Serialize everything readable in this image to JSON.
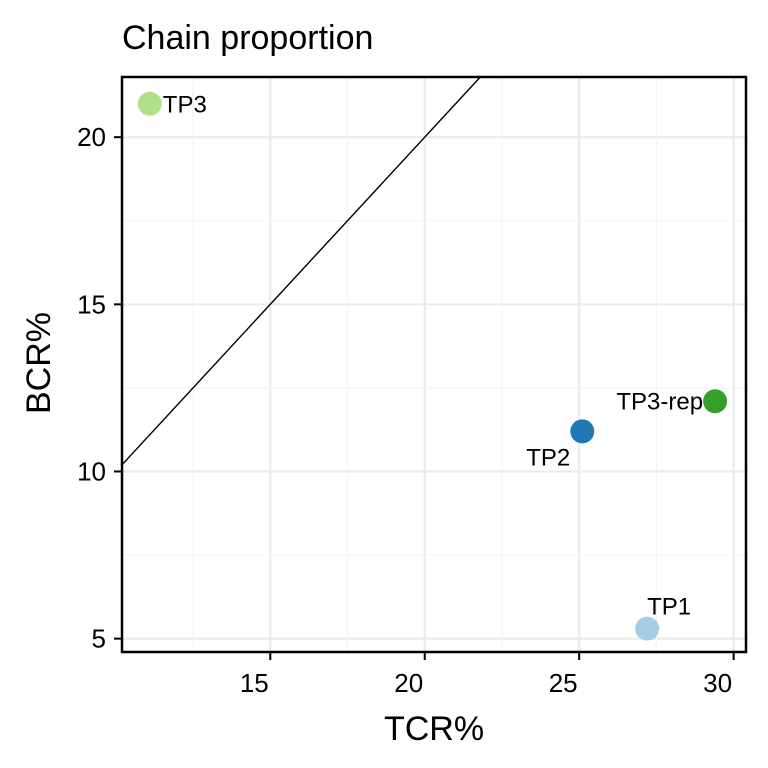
{
  "chart_data": {
    "type": "scatter",
    "title": "Chain proportion",
    "xlabel": "TCR%",
    "ylabel": "BCR%",
    "xlim": [
      10.2,
      30.4
    ],
    "ylim": [
      4.6,
      21.8
    ],
    "x_ticks": [
      15,
      20,
      25,
      30
    ],
    "x_tick_labels": [
      "15",
      "20",
      "25",
      "30"
    ],
    "y_ticks": [
      5,
      10,
      15,
      20
    ],
    "y_tick_labels": [
      "5",
      "10",
      "15",
      "20"
    ],
    "grid": true,
    "reference_line": {
      "slope": 1,
      "intercept": 0
    },
    "points": [
      {
        "label": "TP1",
        "x": 27.2,
        "y": 5.3,
        "color": "#a6cee3",
        "label_pos": "above-right"
      },
      {
        "label": "TP2",
        "x": 25.1,
        "y": 11.2,
        "color": "#1f78b4",
        "label_pos": "below-left"
      },
      {
        "label": "TP3",
        "x": 11.1,
        "y": 21.0,
        "color": "#b2df8a",
        "label_pos": "right"
      },
      {
        "label": "TP3-rep",
        "x": 29.4,
        "y": 12.1,
        "color": "#33a02c",
        "label_pos": "left"
      }
    ]
  }
}
